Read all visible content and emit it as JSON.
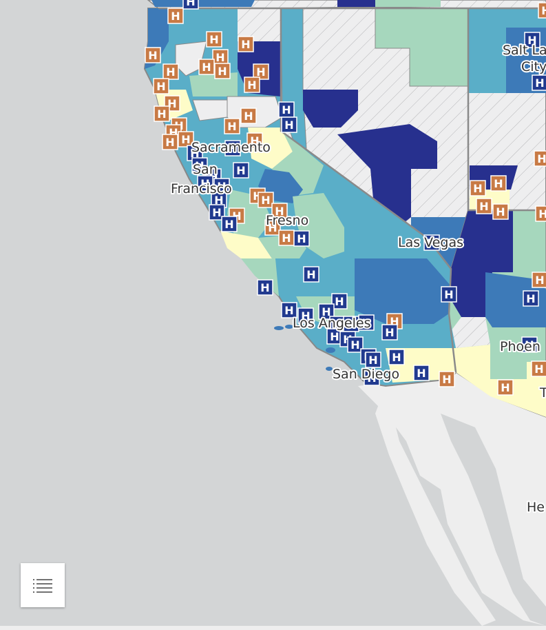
{
  "map": {
    "cities": [
      {
        "name": "Salt La",
        "id": "salt-lake-1"
      },
      {
        "name": "City",
        "id": "salt-lake-2"
      },
      {
        "name": "Sacramento",
        "id": "sacramento"
      },
      {
        "name": "San",
        "id": "san-francisco-1"
      },
      {
        "name": "Francisco",
        "id": "san-francisco-2"
      },
      {
        "name": "Fresno",
        "id": "fresno"
      },
      {
        "name": "Las Vegas",
        "id": "las-vegas"
      },
      {
        "name": "Los Angeles",
        "id": "los-angeles"
      },
      {
        "name": "Phoen",
        "id": "phoenix"
      },
      {
        "name": "San Diego",
        "id": "san-diego"
      },
      {
        "name": "T",
        "id": "tucson"
      },
      {
        "name": "He",
        "id": "hermosillo"
      }
    ],
    "marker_glyph": "H",
    "marker_colors": {
      "blue": "#213a8f",
      "orange": "#c87a45"
    },
    "fill_classes": {
      "darkest": "#27308e",
      "dark": "#3d7ab8",
      "mid": "#5aaec8",
      "light": "#a6d7bd",
      "lightest": "#fefcc8",
      "nodata": "#eeeeef",
      "ocean": "#d3d5d6",
      "land": "#eeeeee"
    }
  },
  "legend_button": {
    "icon": "list-icon"
  }
}
